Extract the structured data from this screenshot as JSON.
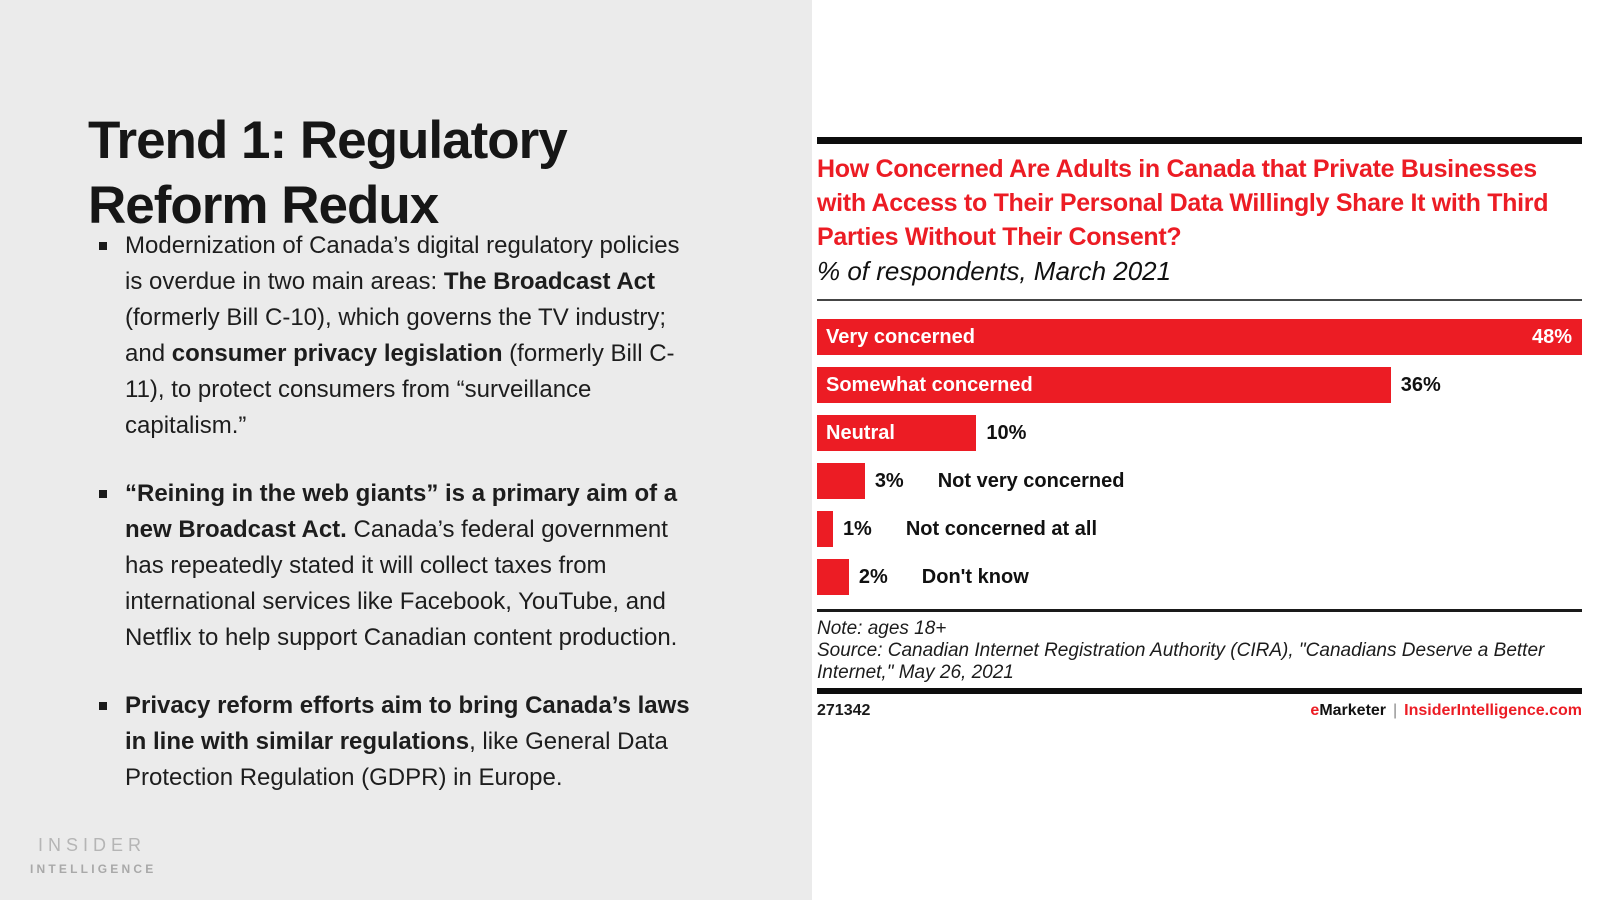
{
  "slide": {
    "title": "Trend 1: Regulatory Reform Redux",
    "bullets": [
      {
        "segments": [
          {
            "t": "Modernization of Canada’s digital regulatory policies is overdue in two main areas: "
          },
          {
            "t": "The Broadcast Act",
            "b": true
          },
          {
            "t": " (formerly Bill C-10), which governs the TV industry; and "
          },
          {
            "t": "consumer privacy legislation",
            "b": true
          },
          {
            "t": " (formerly Bill C-11), to protect consumers from “surveillance capitalism.”"
          }
        ]
      },
      {
        "segments": [
          {
            "t": "“Reining in the web giants” is a primary aim of a new Broadcast Act.",
            "b": true
          },
          {
            "t": " Canada’s federal government has repeatedly stated it will collect taxes from international services like Facebook, YouTube, and Netflix to help support Canadian content production."
          }
        ]
      },
      {
        "segments": [
          {
            "t": "Privacy reform efforts aim to bring Canada’s laws in line with similar regulations",
            "b": true
          },
          {
            "t": ", like General Data Protection Regulation (GDPR) in Europe."
          }
        ]
      }
    ],
    "logo": {
      "line1": "INSIDER",
      "line2": "INTELLIGENCE"
    }
  },
  "chart": {
    "heading": "How Concerned Are Adults in Canada that Private Businesses with Access to Their Personal Data Willingly Share It with Third Parties Without Their Consent?",
    "subtitle": "% of respondents, March 2021",
    "note": "Note: ages 18+",
    "source": "Source: Canadian Internet Registration Authority (CIRA), \"Canadians Deserve a Better Internet,\" May 26, 2021",
    "chart_id": "271342",
    "brand": {
      "e": "e",
      "name": "Marketer",
      "separator": "|",
      "site": "InsiderIntelligence.com"
    }
  },
  "chart_data": {
    "type": "bar",
    "orientation": "horizontal",
    "title": "How Concerned Are Adults in Canada that Private Businesses with Access to Their Personal Data Willingly Share It with Third Parties Without Their Consent?",
    "subtitle": "% of respondents, March 2021",
    "unit": "%",
    "value_axis_max": 48,
    "grid": false,
    "legend": false,
    "categories": [
      "Very concerned",
      "Somewhat concerned",
      "Neutral",
      "Not very concerned",
      "Not concerned at all",
      "Don't know"
    ],
    "values": [
      48,
      36,
      10,
      3,
      1,
      2
    ],
    "rows": [
      {
        "label": "Very concerned",
        "value": 48,
        "display": "48%",
        "label_pos": "inside",
        "value_pos": "inside"
      },
      {
        "label": "Somewhat concerned",
        "value": 36,
        "display": "36%",
        "label_pos": "inside",
        "value_pos": "outside"
      },
      {
        "label": "Neutral",
        "value": 10,
        "display": "10%",
        "label_pos": "inside",
        "value_pos": "outside"
      },
      {
        "label": "Not very concerned",
        "value": 3,
        "display": "3%",
        "label_pos": "outside",
        "value_pos": "outside"
      },
      {
        "label": "Not concerned at all",
        "value": 1,
        "display": "1%",
        "label_pos": "outside",
        "value_pos": "outside"
      },
      {
        "label": "Don't know",
        "value": 2,
        "display": "2%",
        "label_pos": "outside",
        "value_pos": "outside"
      }
    ]
  },
  "colors": {
    "accent_red": "#EC1C24",
    "panel_gray": "#EBEBEB",
    "text_black": "#1A1A1A",
    "logo_gray": "#B3B3B3"
  }
}
